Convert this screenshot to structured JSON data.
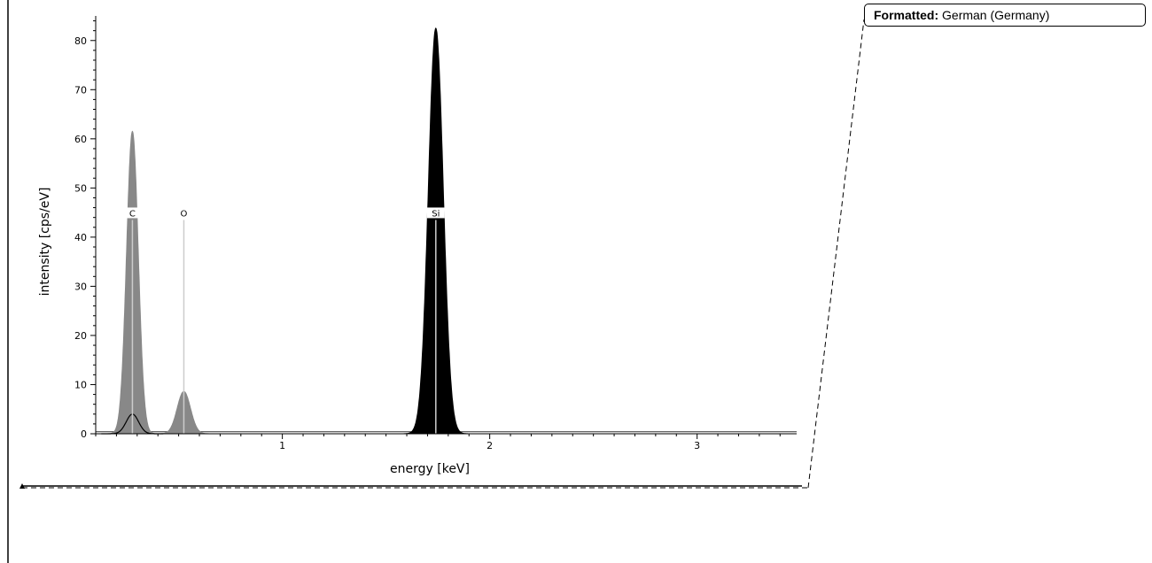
{
  "comment": {
    "label": "Formatted:",
    "text": "German (Germany)"
  },
  "chart_data": {
    "type": "area",
    "xlabel": "energy [keV]",
    "ylabel": "intensity [cps/eV]",
    "xlim": [
      0.1,
      3.48
    ],
    "ylim": [
      0,
      85
    ],
    "x_ticks": [
      1,
      2,
      3
    ],
    "y_ticks": [
      0,
      10,
      20,
      30,
      40,
      50,
      60,
      70,
      80
    ],
    "grid": false,
    "legend": "none",
    "colors": {
      "light_fill": "#888888",
      "dark_fill": "#000000",
      "marker_line": "#cccccc"
    },
    "peaks": [
      {
        "element": "C",
        "energy": 0.277,
        "height": 61.5,
        "sigma": 0.028,
        "fill": "light",
        "marker": true
      },
      {
        "element": "O",
        "energy": 0.525,
        "height": 8.6,
        "sigma": 0.032,
        "fill": "light",
        "marker": true
      },
      {
        "element": "Si",
        "energy": 1.74,
        "height": 82.5,
        "sigma": 0.036,
        "fill": "dark",
        "marker": true
      }
    ],
    "background_level": 0.4,
    "overlay_curve": [
      {
        "energy": 0.277,
        "height": 4.0,
        "sigma": 0.03
      }
    ]
  }
}
